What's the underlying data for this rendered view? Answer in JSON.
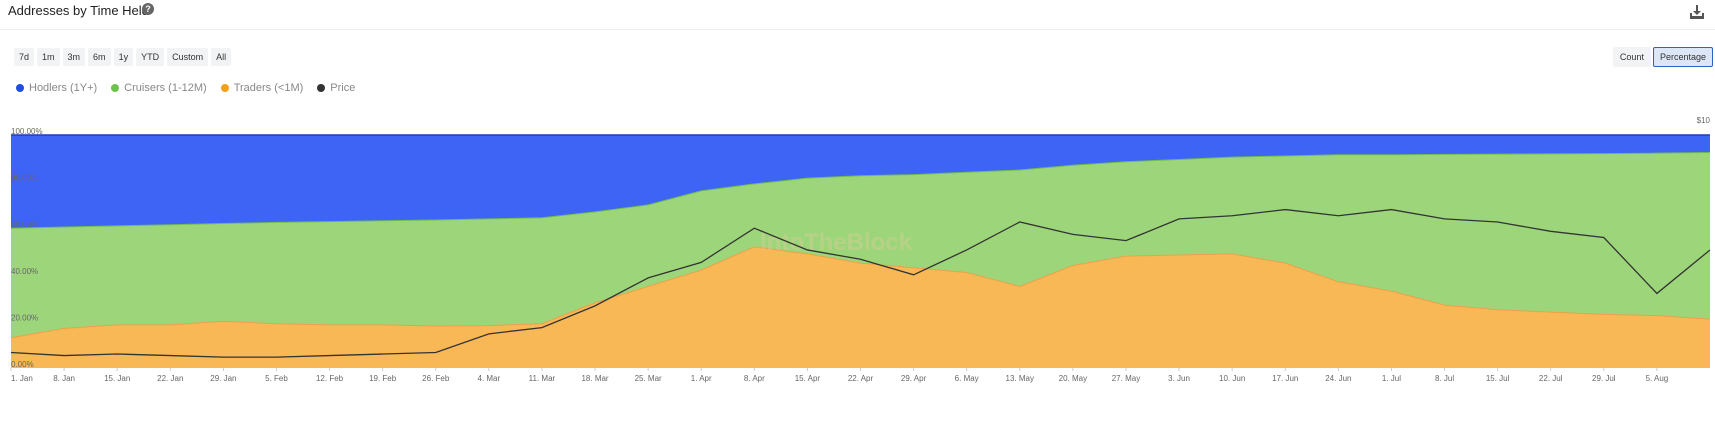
{
  "header": {
    "title": "Addresses by Time Held",
    "help_icon": "question-circle-icon",
    "download_icon": "download-icon"
  },
  "time_ranges": [
    "7d",
    "1m",
    "3m",
    "6m",
    "1y",
    "YTD",
    "Custom",
    "All"
  ],
  "modes": [
    {
      "label": "Count",
      "active": false
    },
    {
      "label": "Percentage",
      "active": true
    }
  ],
  "watermark": "IntoTheBlock",
  "colors": {
    "hodlers": "#3d64f5",
    "cruisers": "#9dd67a",
    "traders": "#f7b855",
    "price": "#333333",
    "hodlers_line": "#1f3fb5",
    "cruisers_line": "#72be4d",
    "traders_line": "#eda04a"
  },
  "chart_data": {
    "type": "area",
    "stacked_percent": true,
    "legend": [
      {
        "name": "Hodlers (1Y+)",
        "color": "#1f4fe0"
      },
      {
        "name": "Cruisers (1-12M)",
        "color": "#6cc24a"
      },
      {
        "name": "Traders (<1M)",
        "color": "#f59f1a"
      },
      {
        "name": "Price",
        "color": "#333333"
      }
    ],
    "x_ticks": [
      "1. Jan",
      "8. Jan",
      "15. Jan",
      "22. Jan",
      "29. Jan",
      "5. Feb",
      "12. Feb",
      "19. Feb",
      "26. Feb",
      "4. Mar",
      "11. Mar",
      "18. Mar",
      "25. Mar",
      "1. Apr",
      "8. Apr",
      "15. Apr",
      "22. Apr",
      "29. Apr",
      "6. May",
      "13. May",
      "20. May",
      "27. May",
      "3. Jun",
      "10. Jun",
      "17. Jun",
      "24. Jun",
      "1. Jul",
      "8. Jul",
      "15. Jul",
      "22. Jul",
      "29. Jul",
      "5. Aug"
    ],
    "y_ticks": [
      "0.00%",
      "20.00%",
      "40.00%",
      "60.00%",
      "80.00%",
      "100.00%"
    ],
    "ylim": [
      0,
      100
    ],
    "price_ticks": [
      "$10"
    ],
    "x_days": [
      0,
      7,
      14,
      21,
      28,
      35,
      42,
      49,
      56,
      63,
      70,
      77,
      84,
      91,
      98,
      105,
      112,
      119,
      126,
      133,
      140,
      147,
      154,
      161,
      168,
      175,
      182,
      189,
      196,
      203,
      210,
      217,
      224
    ],
    "traders_pct": [
      13,
      17,
      18.5,
      18.5,
      20,
      19,
      18.5,
      18.5,
      18,
      18.2,
      19,
      28,
      35,
      42,
      52,
      49,
      45,
      43,
      41,
      35,
      44,
      48,
      48.5,
      49,
      45,
      37,
      33,
      27,
      25,
      24,
      23,
      22.5,
      21
    ],
    "hodlers_pct": [
      40,
      39.5,
      39,
      38.5,
      38,
      37.5,
      37.2,
      36.8,
      36.5,
      36,
      35.5,
      33,
      30,
      24,
      21,
      18.5,
      17.5,
      17,
      16,
      15,
      13,
      11.5,
      10.5,
      9.5,
      9,
      8.5,
      8.5,
      8.3,
      8.2,
      8.1,
      8,
      7.8,
      7.5
    ],
    "price": [
      3.0,
      2.9,
      2.95,
      2.9,
      2.85,
      2.85,
      2.9,
      2.95,
      3.0,
      3.6,
      3.8,
      4.5,
      5.4,
      5.9,
      7.0,
      6.3,
      6.0,
      5.5,
      6.3,
      7.2,
      6.8,
      6.6,
      7.3,
      7.4,
      7.6,
      7.4,
      7.6,
      7.3,
      7.2,
      6.9,
      6.7,
      4.9,
      6.3
    ]
  }
}
